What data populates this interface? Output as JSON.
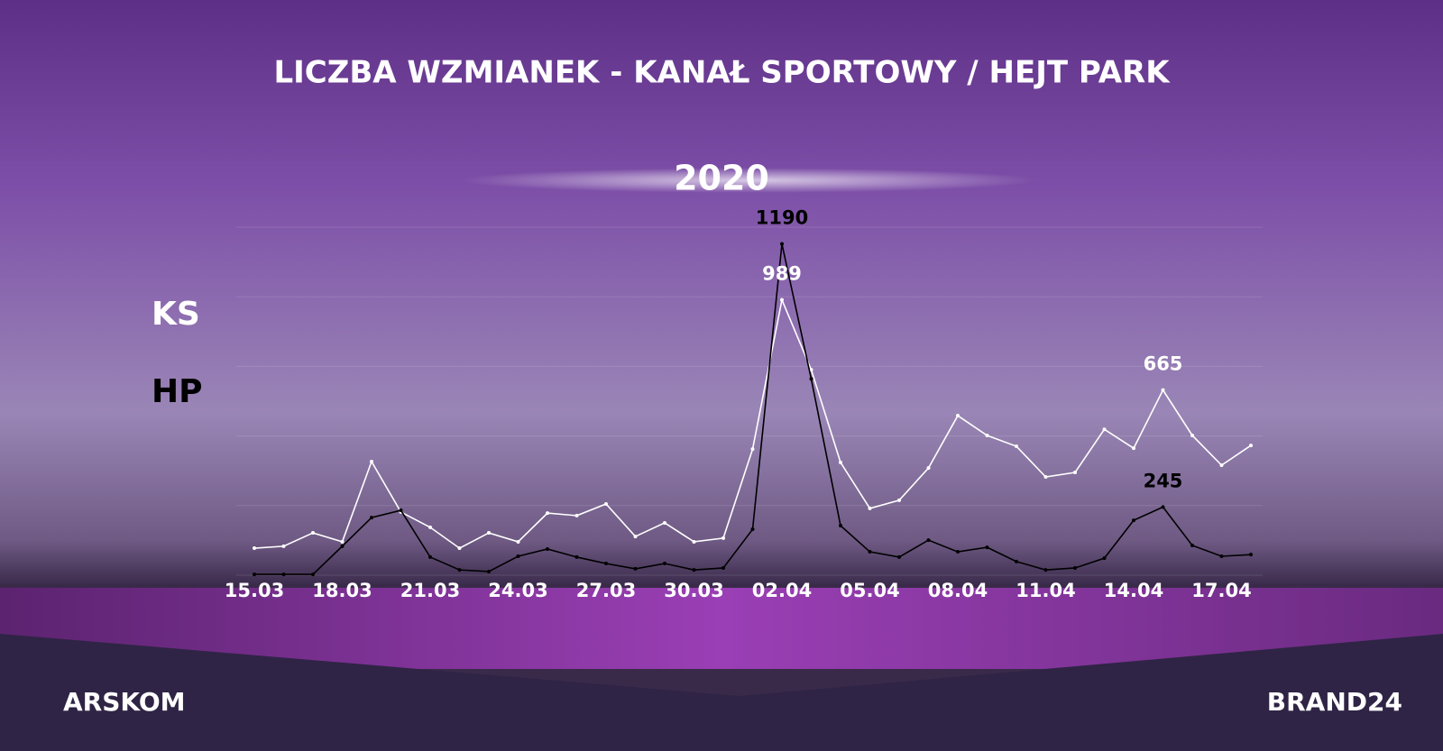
{
  "chart_data": {
    "type": "line",
    "title": "LICZBA WZMIANEK - KANAŁ SPORTOWY / HEJT PARK",
    "subtitle": "2020",
    "categories": [
      "15.03",
      null,
      null,
      "18.03",
      null,
      null,
      "21.03",
      null,
      null,
      "24.03",
      null,
      null,
      "27.03",
      null,
      null,
      "30.03",
      null,
      null,
      "02.04",
      null,
      null,
      "05.04",
      null,
      null,
      "08.04",
      null,
      null,
      "11.04",
      null,
      null,
      "14.04",
      null,
      null,
      "17.04",
      null
    ],
    "series": [
      {
        "name": "KS",
        "color": "#ffffff",
        "values": [
          97,
          104,
          152,
          120,
          408,
          227,
          172,
          97,
          152,
          120,
          223,
          214,
          256,
          139,
          188,
          120,
          133,
          453,
          989,
          738,
          405,
          240,
          269,
          385,
          573,
          502,
          463,
          353,
          369,
          524,
          456,
          665,
          502,
          395,
          466
        ]
      },
      {
        "name": "HP",
        "color": "#000000",
        "values": [
          3,
          3,
          3,
          104,
          207,
          233,
          65,
          19,
          13,
          68,
          94,
          65,
          42,
          23,
          42,
          19,
          26,
          165,
          1190,
          705,
          178,
          84,
          65,
          126,
          84,
          100,
          49,
          19,
          26,
          61,
          197,
          245,
          107,
          68,
          74
        ]
      }
    ],
    "data_labels": [
      {
        "series": 1,
        "index": 18
      },
      {
        "series": 0,
        "index": 18
      },
      {
        "series": 0,
        "index": 31
      },
      {
        "series": 1,
        "index": 31
      }
    ],
    "ylim": [
      0,
      1250
    ],
    "yticks": [
      0,
      250,
      500,
      750,
      1000,
      1250
    ],
    "grid": true
  },
  "footer": {
    "left": "ARSKOM",
    "right": "BRAND24"
  }
}
